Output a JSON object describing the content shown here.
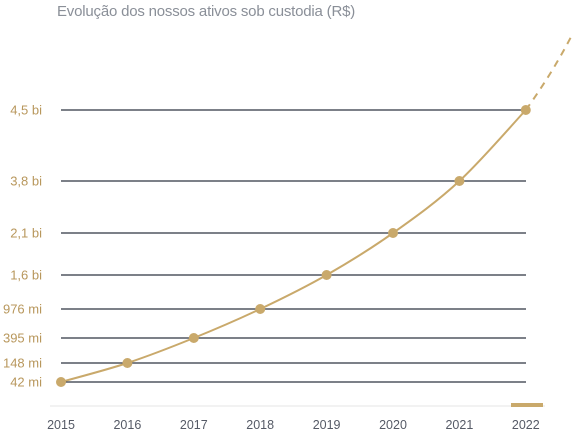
{
  "chart_data": {
    "type": "line",
    "title": "Evolução dos nossos ativos sob custodia (R$)",
    "xlabel": "",
    "ylabel": "",
    "x": [
      "2015",
      "2016",
      "2017",
      "2018",
      "2019",
      "2020",
      "2021",
      "2022"
    ],
    "series": [
      {
        "values": [
          42,
          148,
          395,
          976,
          1600,
          2100,
          3800,
          4500
        ],
        "labels": [
          "42 mi",
          "148 mi",
          "395 mi",
          "976 mi",
          "1,6 bi",
          "2,1 bi",
          "3,8 bi",
          "4,5 bi"
        ]
      }
    ],
    "y_ticks": [
      "42 mi",
      "148 mi",
      "395 mi",
      "976 mi",
      "1,6 bi",
      "2,1 bi",
      "3,8 bi",
      "4,5 bi"
    ],
    "projection_after_last_point": "dashed",
    "grid": "horizontal",
    "legend": "none"
  },
  "colors": {
    "line": "#c9a96b",
    "marker": "#c9a96b",
    "gridline": "#2f3542",
    "ytick_text": "#b8975c",
    "xtick_text": "#555a66",
    "title_text": "#8a8f98",
    "axis_line": "#e6e6e6",
    "highlight_bar": "#c9a96b"
  }
}
